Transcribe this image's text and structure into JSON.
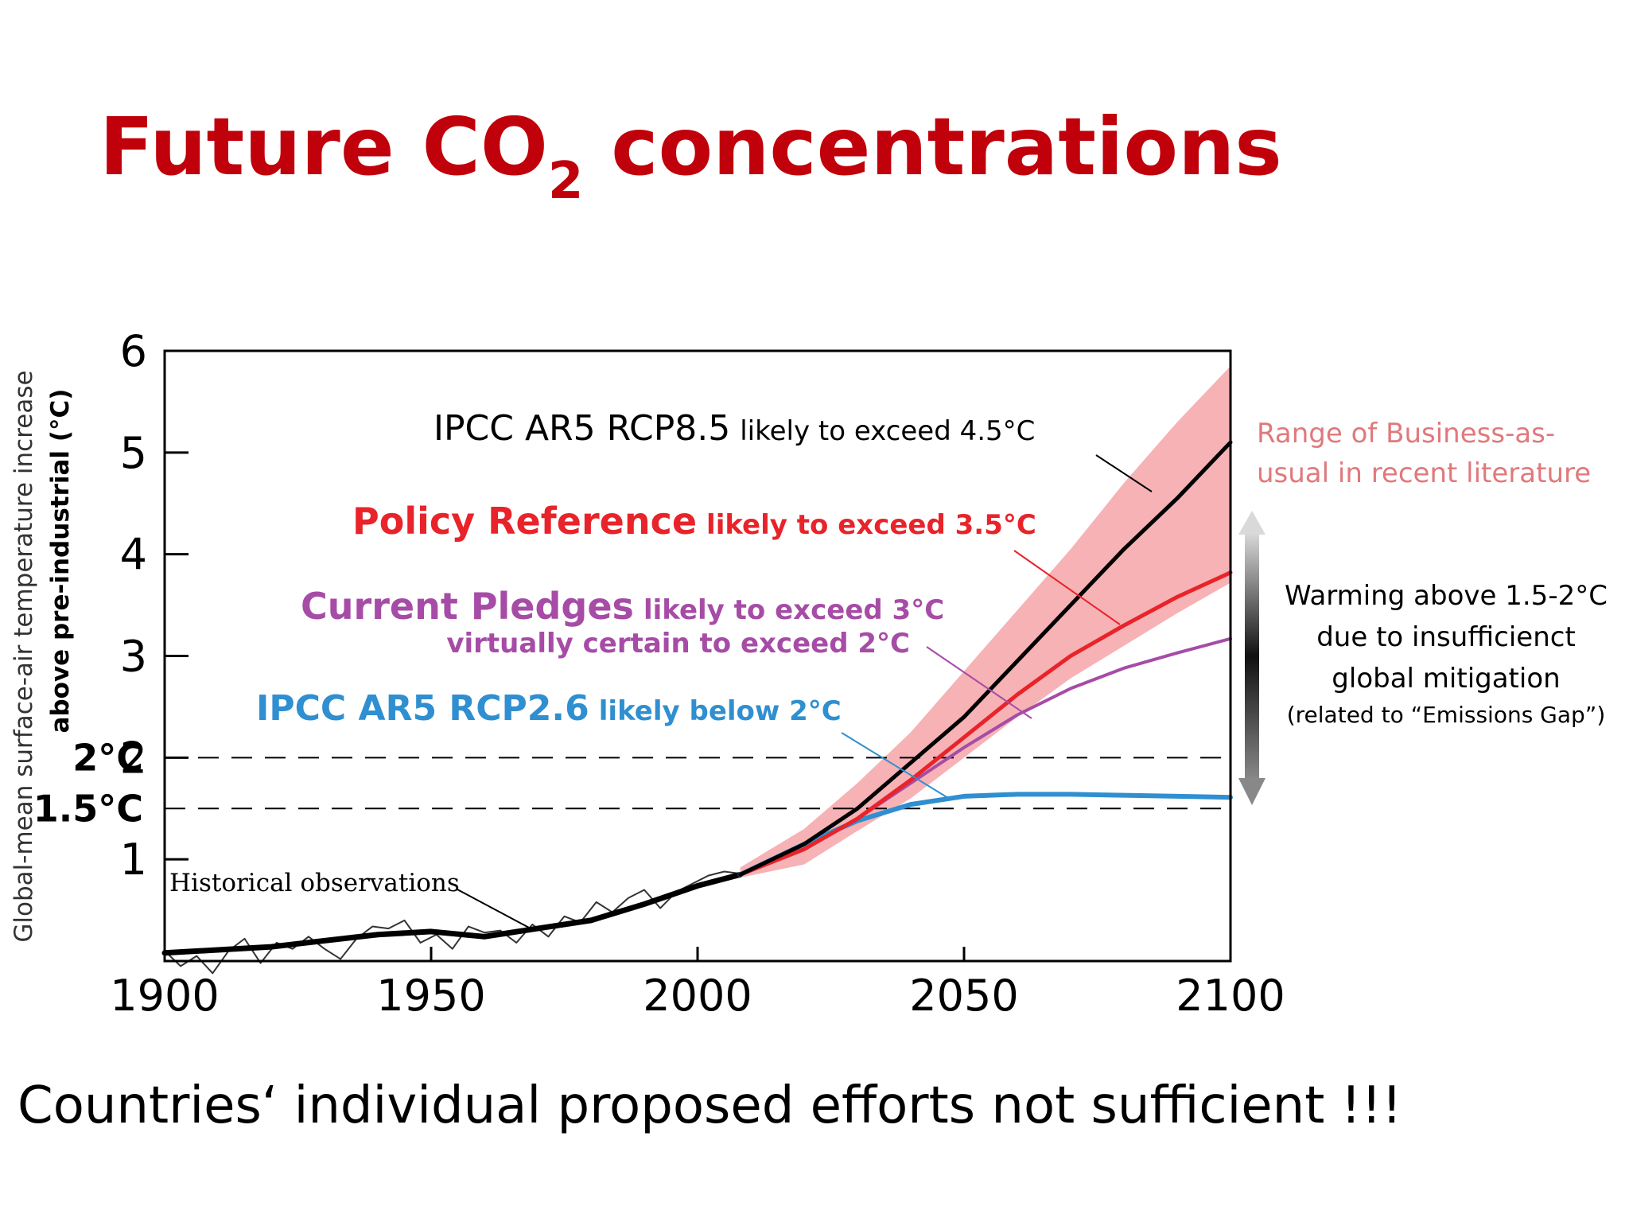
{
  "slide": {
    "title_main": "Future CO",
    "title_sub": "2",
    "title_rest": " concentrations",
    "footer": "Countries‘ individual proposed efforts not sufficient !!!"
  },
  "chart_data": {
    "type": "line",
    "title": "",
    "ylabel_line1": "Global-mean surface-air temperature increase",
    "ylabel_line2": "above pre-industrial (°C)",
    "xlabel": "",
    "xlim": [
      1900,
      2100
    ],
    "ylim": [
      0,
      6
    ],
    "x_ticks": [
      1900,
      1950,
      2000,
      2050,
      2100
    ],
    "y_ticks": [
      1,
      2,
      3,
      4,
      5,
      6
    ],
    "reference_lines": [
      {
        "label": "2°C",
        "value": 2.0
      },
      {
        "label": "1.5°C",
        "value": 1.5
      }
    ],
    "colors": {
      "rcp85": "#000000",
      "policy": "#e8232a",
      "pledges": "#a64ca6",
      "rcp26": "#2f8fd0",
      "band": "#f4a5a8",
      "observations": "#333333"
    },
    "series": [
      {
        "key": "observations",
        "name": "Historical observations",
        "x": [
          1900,
          1903,
          1906,
          1909,
          1912,
          1915,
          1918,
          1921,
          1924,
          1927,
          1930,
          1933,
          1936,
          1939,
          1942,
          1945,
          1948,
          1951,
          1954,
          1957,
          1960,
          1963,
          1966,
          1969,
          1972,
          1975,
          1978,
          1981,
          1984,
          1987,
          1990,
          1993,
          1996,
          1999,
          2002,
          2005,
          2008
        ],
        "y": [
          0.1,
          -0.05,
          0.05,
          -0.12,
          0.1,
          0.22,
          -0.02,
          0.18,
          0.12,
          0.24,
          0.12,
          0.02,
          0.22,
          0.34,
          0.32,
          0.4,
          0.18,
          0.26,
          0.12,
          0.34,
          0.28,
          0.3,
          0.18,
          0.36,
          0.24,
          0.44,
          0.38,
          0.58,
          0.48,
          0.62,
          0.7,
          0.52,
          0.68,
          0.76,
          0.84,
          0.88,
          0.86
        ]
      },
      {
        "key": "observations_trend",
        "x": [
          1900,
          1920,
          1940,
          1950,
          1960,
          1970,
          1980,
          1990,
          2000,
          2008
        ],
        "y": [
          0.08,
          0.14,
          0.26,
          0.29,
          0.24,
          0.32,
          0.4,
          0.56,
          0.74,
          0.85
        ]
      },
      {
        "key": "rcp85",
        "name": "IPCC AR5 RCP8.5",
        "note": "likely to exceed 4.5°C",
        "x": [
          2008,
          2020,
          2030,
          2040,
          2050,
          2060,
          2070,
          2080,
          2090,
          2100
        ],
        "y": [
          0.85,
          1.15,
          1.5,
          1.95,
          2.4,
          2.95,
          3.5,
          4.05,
          4.55,
          5.1
        ]
      },
      {
        "key": "policy",
        "name": "Policy Reference",
        "note": "likely to exceed 3.5°C",
        "x": [
          2008,
          2020,
          2030,
          2040,
          2050,
          2060,
          2070,
          2080,
          2090,
          2100
        ],
        "y": [
          0.85,
          1.1,
          1.4,
          1.78,
          2.2,
          2.62,
          3.0,
          3.3,
          3.58,
          3.82
        ]
      },
      {
        "key": "pledges",
        "name": "Current Pledges",
        "note": "likely to exceed 3°C",
        "note2": "virtually certain to exceed 2°C",
        "x": [
          2008,
          2020,
          2030,
          2040,
          2050,
          2060,
          2070,
          2080,
          2090,
          2100
        ],
        "y": [
          0.85,
          1.1,
          1.4,
          1.75,
          2.1,
          2.42,
          2.68,
          2.88,
          3.03,
          3.17
        ]
      },
      {
        "key": "rcp26",
        "name": "IPCC AR5 RCP2.6",
        "note": "likely below 2°C",
        "x": [
          2008,
          2020,
          2030,
          2040,
          2050,
          2060,
          2070,
          2080,
          2090,
          2100
        ],
        "y": [
          0.85,
          1.15,
          1.38,
          1.54,
          1.62,
          1.64,
          1.64,
          1.63,
          1.62,
          1.61
        ]
      }
    ],
    "business_as_usual_band": {
      "label_line1": "Range of Business-as-",
      "label_line2": "usual in recent literature",
      "x": [
        2008,
        2020,
        2030,
        2040,
        2050,
        2060,
        2070,
        2080,
        2090,
        2100
      ],
      "upper": [
        0.92,
        1.3,
        1.75,
        2.25,
        2.85,
        3.45,
        4.05,
        4.7,
        5.3,
        5.85
      ],
      "lower": [
        0.82,
        0.95,
        1.28,
        1.6,
        2.0,
        2.4,
        2.78,
        3.1,
        3.42,
        3.72
      ]
    },
    "arrow_annotation": {
      "line1": "Warming above 1.5-2°C",
      "line2": "due to insufficienct",
      "line3": "global mitigation",
      "line4": "(related to “Emissions Gap”)"
    }
  }
}
